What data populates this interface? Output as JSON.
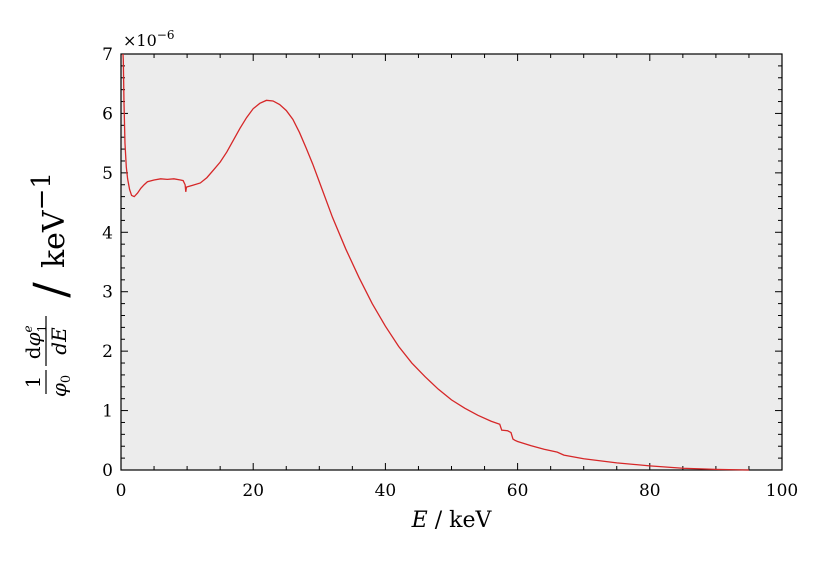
{
  "chart_data": {
    "type": "line",
    "xlabel": {
      "var": "E",
      "sep": " / ",
      "unit": "keV"
    },
    "ylabel": {
      "coef": "1",
      "prefactor_den": "φ",
      "prefactor_den_sub": "0",
      "num_d": "d",
      "num_var": "φ",
      "num_sup": "e",
      "num_sub": "1",
      "den": "dE",
      "sep": "/",
      "unit": "keV",
      "unit_sup": "−1"
    },
    "y_multiplier": {
      "base": "×10",
      "exp": "−6"
    },
    "xlim": [
      0,
      100
    ],
    "ylim": [
      0,
      7
    ],
    "xticks": [
      "0",
      "20",
      "40",
      "60",
      "80",
      "100"
    ],
    "yticks": [
      "0",
      "1",
      "2",
      "3",
      "4",
      "5",
      "6",
      "7"
    ],
    "grid": false,
    "background": "#ececec",
    "series": [
      {
        "color": "#d62728",
        "x": [
          0.3,
          0.35,
          0.45,
          0.6,
          0.8,
          1.0,
          1.3,
          1.6,
          2.0,
          2.5,
          3.0,
          3.5,
          4.0,
          5.0,
          6.0,
          7.0,
          8.0,
          9.0,
          9.4,
          9.7,
          9.8,
          9.9,
          10.2,
          10.8,
          12.0,
          13.0,
          14.0,
          15.0,
          16.0,
          17.0,
          18.0,
          19.0,
          20.0,
          21.0,
          22.0,
          23.0,
          24.0,
          25.0,
          26.0,
          27.0,
          28.0,
          29.0,
          30.0,
          32.0,
          34.0,
          36.0,
          38.0,
          40.0,
          42.0,
          44.0,
          46.0,
          48.0,
          50.0,
          52.0,
          54.0,
          56.0,
          57.3,
          57.6,
          58.5,
          59.0,
          59.3,
          59.6,
          60.0,
          62.0,
          64.0,
          66.0,
          67.0,
          70.0,
          75.0,
          80.0,
          85.0,
          90.0,
          95.0
        ],
        "y": [
          7.0,
          6.9,
          6.2,
          5.5,
          5.1,
          4.9,
          4.72,
          4.62,
          4.6,
          4.66,
          4.74,
          4.8,
          4.85,
          4.88,
          4.9,
          4.89,
          4.9,
          4.88,
          4.87,
          4.8,
          4.68,
          4.76,
          4.77,
          4.79,
          4.83,
          4.92,
          5.05,
          5.18,
          5.35,
          5.55,
          5.75,
          5.93,
          6.08,
          6.17,
          6.22,
          6.21,
          6.15,
          6.05,
          5.9,
          5.68,
          5.42,
          5.15,
          4.85,
          4.25,
          3.72,
          3.24,
          2.8,
          2.42,
          2.08,
          1.8,
          1.57,
          1.36,
          1.18,
          1.04,
          0.92,
          0.82,
          0.77,
          0.67,
          0.66,
          0.63,
          0.52,
          0.5,
          0.48,
          0.41,
          0.35,
          0.3,
          0.25,
          0.19,
          0.12,
          0.07,
          0.03,
          0.01,
          0.0
        ]
      }
    ]
  }
}
